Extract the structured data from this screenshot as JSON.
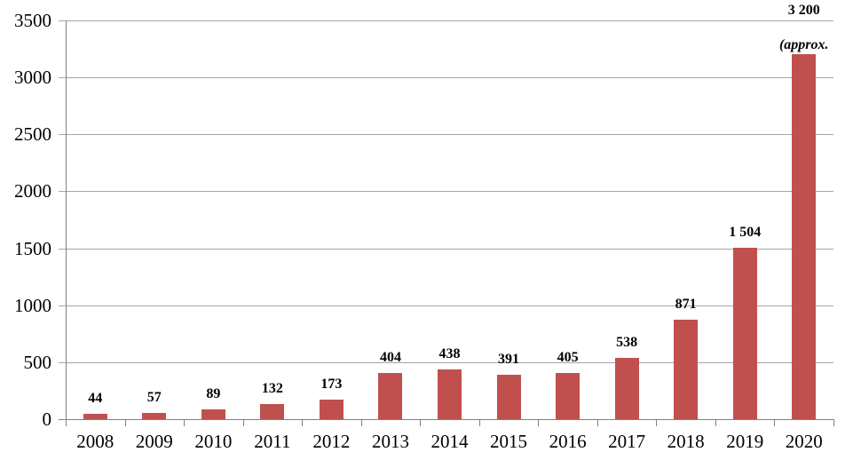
{
  "chart_data": {
    "type": "bar",
    "title": "",
    "categories": [
      "2008",
      "2009",
      "2010",
      "2011",
      "2012",
      "2013",
      "2014",
      "2015",
      "2016",
      "2017",
      "2018",
      "2019",
      "2020"
    ],
    "values": [
      44,
      57,
      89,
      132,
      173,
      404,
      438,
      391,
      405,
      538,
      871,
      1504,
      3200
    ],
    "value_labels": [
      "44",
      "57",
      "89",
      "132",
      "173",
      "404",
      "438",
      "391",
      "405",
      "538",
      "871",
      "1 504",
      "3 200"
    ],
    "note_label": "(approx.",
    "note_category": "2020",
    "note_index": 12,
    "xlabel": "",
    "ylabel": "",
    "ylim": [
      0,
      3500
    ],
    "ytick_interval": 500,
    "ytick_labels": [
      "0",
      "500",
      "1000",
      "1500",
      "2000",
      "2500",
      "3000",
      "3500"
    ],
    "grid": true,
    "legend": "none",
    "colors": {
      "bar": "#C0504D",
      "grid": "#A6A6A6",
      "axis": "#808080",
      "text": "#000000",
      "background": "#FFFFFF"
    }
  }
}
